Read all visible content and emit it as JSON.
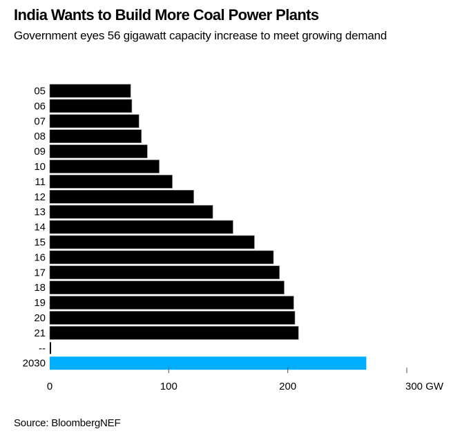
{
  "chart_data": {
    "type": "bar",
    "orientation": "horizontal",
    "title": "India Wants to Build More Coal Power Plants",
    "subtitle": "Government eyes 56 gigawatt capacity increase to meet growing demand",
    "categories": [
      "05",
      "06",
      "07",
      "08",
      "09",
      "10",
      "11",
      "12",
      "13",
      "14",
      "15",
      "16",
      "17",
      "18",
      "19",
      "20",
      "21",
      "--",
      "2030"
    ],
    "values": [
      68,
      69,
      75,
      77,
      82,
      92,
      103,
      121,
      137,
      154,
      172,
      188,
      193,
      197,
      205,
      206,
      209,
      0.5,
      266
    ],
    "colors": {
      "historical": "#000000",
      "target": "#00AEFF"
    },
    "highlight_category": "2030",
    "xlabel": "",
    "ylabel": "",
    "unit": "GW",
    "xlim": [
      0,
      300
    ],
    "x_ticks": [
      0,
      100,
      200,
      300
    ],
    "x_tick_labels": [
      "0",
      "100",
      "200",
      "300 GW"
    ],
    "grid": false,
    "source": "Source: BloombergNEF"
  }
}
